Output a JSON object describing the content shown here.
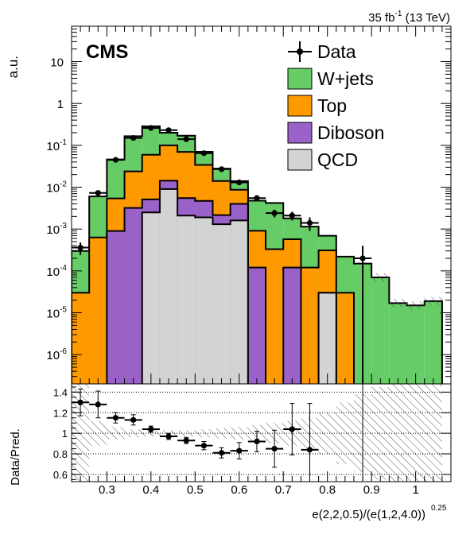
{
  "header": {
    "lumi_value": "35 fb",
    "lumi_exp": "-1",
    "energy": " (13 TeV)",
    "experiment": "CMS"
  },
  "axes": {
    "top_ylabel": "a.u.",
    "bottom_ylabel": "Data/Pred.",
    "xlabel_main": "e(2,2,0.5)/(e(1,2,4.0))",
    "xlabel_exp": "0.25"
  },
  "chart_data": {
    "type": "bar",
    "stacked": true,
    "log_y": true,
    "x_range": [
      0.22,
      1.08
    ],
    "x_ticks": [
      0.3,
      0.4,
      0.5,
      0.6,
      0.7,
      0.8,
      0.9,
      1
    ],
    "x_tick_labels": [
      "0.3",
      "0.4",
      "0.5",
      "0.6",
      "0.7",
      "0.8",
      "0.9",
      "1"
    ],
    "y_range": [
      2e-07,
      70
    ],
    "y_ticks": [
      1e-06,
      1e-05,
      0.0001,
      0.001,
      0.01,
      0.1,
      1,
      10
    ],
    "y_tick_labels": [
      {
        "base": "10",
        "exp": "-6"
      },
      {
        "base": "10",
        "exp": "-5"
      },
      {
        "base": "10",
        "exp": "-4"
      },
      {
        "base": "10",
        "exp": "-3"
      },
      {
        "base": "10",
        "exp": "-2"
      },
      {
        "base": "10",
        "exp": "-1"
      },
      {
        "base": "1",
        "exp": ""
      },
      {
        "base": "10",
        "exp": ""
      }
    ],
    "bin_edges": [
      0.22,
      0.26,
      0.3,
      0.34,
      0.38,
      0.42,
      0.46,
      0.5,
      0.54,
      0.58,
      0.62,
      0.66,
      0.7,
      0.74,
      0.78,
      0.82,
      0.86,
      0.9,
      0.94,
      0.98,
      1.02,
      1.06
    ],
    "stack_order_bottom_to_top": [
      "QCD",
      "Diboson",
      "Top",
      "W+jets"
    ],
    "series": [
      {
        "name": "QCD",
        "color": "#d3d3d3",
        "values": [
          0,
          0,
          0,
          0,
          0.0025,
          0.009,
          0.0021,
          0.0019,
          0.0013,
          0.0016,
          0,
          0,
          0,
          0,
          3e-05,
          0,
          0,
          0,
          0,
          0,
          0
        ]
      },
      {
        "name": "Diboson",
        "color": "#9a62c8",
        "values": [
          0,
          0,
          0.0009,
          0.0032,
          0.0026,
          0.0053,
          0.0034,
          0.0028,
          0.00085,
          0.0024,
          0.00012,
          0,
          0.00012,
          0,
          0,
          0,
          0,
          0,
          0,
          0,
          0
        ]
      },
      {
        "name": "Top",
        "color": "#ff9900",
        "values": [
          3e-05,
          0.00063,
          0.0045,
          0.0207,
          0.0544,
          0.0857,
          0.0641,
          0.0293,
          0.01186,
          0.0047,
          0.00079,
          0.00033,
          0.00045,
          0.00012,
          0.00028,
          3e-05,
          0,
          0,
          0,
          0,
          0
        ]
      },
      {
        "name": "W+jets",
        "color": "#66cc66",
        "values": [
          0.00027,
          0.0054,
          0.0406,
          0.141,
          0.225,
          0.1,
          0.1,
          0.036,
          0.0138,
          0.0053,
          0.00386,
          0.00387,
          0.00123,
          0.00102,
          0.00038,
          0.00019,
          0.00015,
          7e-05,
          1.7e-05,
          1.5e-05,
          1.9e-05
        ]
      }
    ],
    "data": {
      "name": "Data",
      "x": [
        0.24,
        0.28,
        0.32,
        0.36,
        0.4,
        0.44,
        0.48,
        0.52,
        0.56,
        0.6,
        0.64,
        0.68,
        0.72,
        0.76,
        0.88
      ],
      "y": [
        0.00036,
        0.0073,
        0.045,
        0.15,
        0.26,
        0.23,
        0.14,
        0.065,
        0.027,
        0.013,
        0.0055,
        0.0024,
        0.0021,
        0.0014,
        0.0002
      ],
      "xerr": [
        0.02,
        0.02,
        0.02,
        0.02,
        0.02,
        0.02,
        0.02,
        0.02,
        0.02,
        0.02,
        0.02,
        0.02,
        0.02,
        0.02,
        0.02
      ],
      "yerr_up": [
        0.00012,
        0.0009,
        0.004,
        0.01,
        0.015,
        0.013,
        0.01,
        0.005,
        0.003,
        0.0015,
        0.0008,
        0.0005,
        0.0005,
        0.0005,
        0.0002
      ],
      "yerr_down": [
        0.00012,
        0.0009,
        0.004,
        0.01,
        0.015,
        0.013,
        0.01,
        0.005,
        0.003,
        0.0015,
        0.0008,
        0.0005,
        0.0005,
        0.0005,
        0.0002
      ]
    },
    "legend": {
      "position": "top-right",
      "entries": [
        "Data",
        "W+jets",
        "Top",
        "Diboson",
        "QCD"
      ]
    },
    "ratio": {
      "y_range": [
        0.53,
        1.48
      ],
      "y_ticks": [
        0.6,
        0.8,
        1,
        1.2,
        1.4
      ],
      "y_tick_labels": [
        "0.6",
        "0.8",
        "1",
        "1.2",
        "1.4"
      ],
      "gridlines": [
        0.6,
        0.8,
        1,
        1.2,
        1.4
      ],
      "x": [
        0.24,
        0.28,
        0.32,
        0.36,
        0.4,
        0.44,
        0.48,
        0.52,
        0.56,
        0.6,
        0.64,
        0.68,
        0.72,
        0.76,
        0.88
      ],
      "y": [
        1.3,
        1.28,
        1.15,
        1.13,
        1.04,
        0.97,
        0.93,
        0.88,
        0.81,
        0.83,
        0.92,
        0.85,
        1.04,
        0.84,
        1.0
      ],
      "yerr_up": [
        0.13,
        0.13,
        0.05,
        0.05,
        0.03,
        0.03,
        0.03,
        0.04,
        0.05,
        0.08,
        0.1,
        0.18,
        0.25,
        0.45,
        0.6
      ],
      "yerr_down": [
        0.13,
        0.13,
        0.05,
        0.05,
        0.03,
        0.03,
        0.03,
        0.04,
        0.05,
        0.08,
        0.1,
        0.18,
        0.25,
        0.45,
        0.6
      ],
      "unc_band_up": [
        1.48,
        1.12,
        1.06,
        1.04,
        1.03,
        1.03,
        1.03,
        1.04,
        1.05,
        1.06,
        1.08,
        1.1,
        1.12,
        1.15,
        1.2,
        1.3,
        1.38,
        1.45,
        1.48,
        1.48,
        1.48
      ],
      "unc_band_down": [
        0.53,
        0.88,
        0.94,
        0.96,
        0.97,
        0.97,
        0.97,
        0.96,
        0.95,
        0.94,
        0.92,
        0.9,
        0.88,
        0.85,
        0.8,
        0.7,
        0.62,
        0.55,
        0.53,
        0.53,
        0.53
      ]
    }
  }
}
